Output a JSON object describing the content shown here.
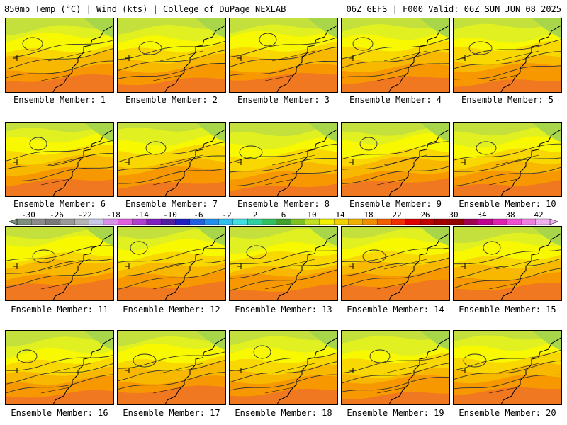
{
  "header": {
    "left_title": "850mb Temp (°C) | Wind (kts) | College of DuPage NEXLAB",
    "right_title": "06Z GEFS | F000 Valid: 06Z SUN JUN 08 2025"
  },
  "panels": [
    {
      "caption": "Ensemble Member: 1"
    },
    {
      "caption": "Ensemble Member: 2"
    },
    {
      "caption": "Ensemble Member: 3"
    },
    {
      "caption": "Ensemble Member: 4"
    },
    {
      "caption": "Ensemble Member: 5"
    },
    {
      "caption": "Ensemble Member: 6"
    },
    {
      "caption": "Ensemble Member: 7"
    },
    {
      "caption": "Ensemble Member: 8"
    },
    {
      "caption": "Ensemble Member: 9"
    },
    {
      "caption": "Ensemble Member: 10"
    },
    {
      "caption": "Ensemble Member: 11"
    },
    {
      "caption": "Ensemble Member: 12"
    },
    {
      "caption": "Ensemble Member: 13"
    },
    {
      "caption": "Ensemble Member: 14"
    },
    {
      "caption": "Ensemble Member: 15"
    },
    {
      "caption": "Ensemble Member: 16"
    },
    {
      "caption": "Ensemble Member: 17"
    },
    {
      "caption": "Ensemble Member: 18"
    },
    {
      "caption": "Ensemble Member: 19"
    },
    {
      "caption": "Ensemble Member: 20"
    }
  ],
  "colorbar": {
    "labels": [
      "-30",
      "-26",
      "-22",
      "-18",
      "-14",
      "-10",
      "-6",
      "-2",
      "2",
      "6",
      "10",
      "14",
      "18",
      "22",
      "26",
      "30",
      "34",
      "38",
      "42"
    ],
    "colors": [
      "#7f8f7f",
      "#8c8c8c",
      "#7a7a7a",
      "#9a9a9a",
      "#b4b4b4",
      "#c8c8e8",
      "#d890e8",
      "#e060e0",
      "#b040d0",
      "#8020c0",
      "#5020a0",
      "#2020c0",
      "#2060e0",
      "#2090f0",
      "#30c0f0",
      "#40e0e0",
      "#30d0a0",
      "#30c060",
      "#40a030",
      "#80c020",
      "#c0e020",
      "#f0f000",
      "#f0d000",
      "#f0b000",
      "#f09000",
      "#f06000",
      "#f03000",
      "#e00000",
      "#c00000",
      "#a00000",
      "#900000",
      "#a00050",
      "#c00090",
      "#e020b0",
      "#f050d0",
      "#f080e0",
      "#f0b0f0"
    ]
  },
  "map_colors": {
    "cold_green": "#a8d64a",
    "light_green": "#c4e03c",
    "yellow_green": "#e0f020",
    "yellow": "#f8f800",
    "gold": "#f8d800",
    "light_orange": "#f8b800",
    "orange": "#f89800",
    "dark_orange": "#f07820",
    "contour": "#333333"
  }
}
